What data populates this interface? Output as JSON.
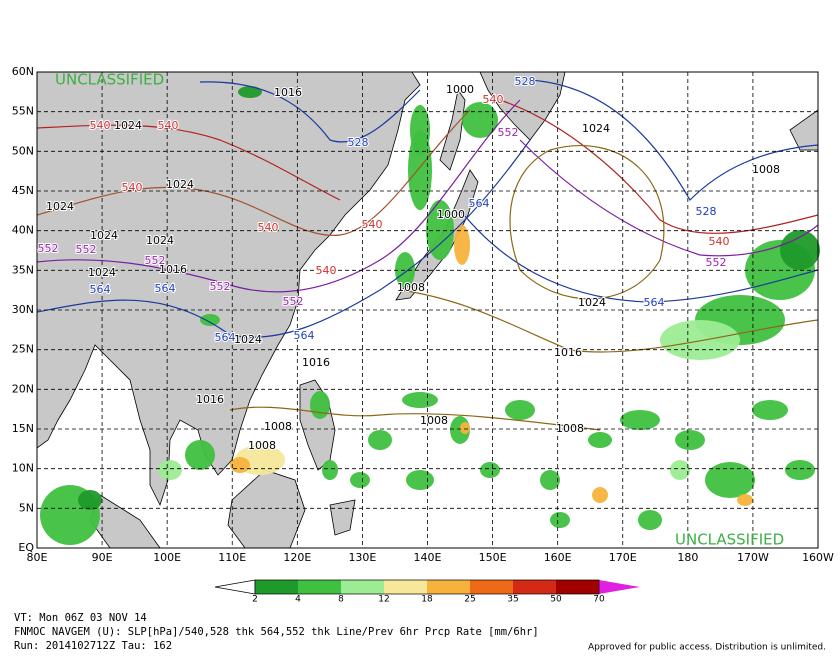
{
  "map": {
    "watermarks": [
      "UNCLASSIFIED",
      "UNCLASSIFIED"
    ],
    "lat_labels": [
      "EQ",
      "5N",
      "10N",
      "15N",
      "20N",
      "25N",
      "30N",
      "35N",
      "40N",
      "45N",
      "50N",
      "55N",
      "60N"
    ],
    "lon_labels": [
      "80E",
      "90E",
      "100E",
      "110E",
      "120E",
      "130E",
      "140E",
      "150E",
      "160E",
      "170E",
      "180",
      "170W",
      "160W"
    ],
    "contour_labels": [
      "1016",
      "1024",
      "540",
      "540",
      "1024",
      "540",
      "1024",
      "540",
      "540",
      "1024",
      "552",
      "552",
      "1024",
      "1016",
      "552",
      "1024",
      "564",
      "564",
      "552",
      "552",
      "540",
      "1008",
      "1016",
      "1024",
      "564",
      "564",
      "528",
      "1000",
      "540",
      "552",
      "1000",
      "564",
      "1024",
      "1008",
      "528",
      "540",
      "552",
      "564",
      "1024",
      "1016",
      "1008",
      "1008",
      "1008",
      "1008",
      "528",
      "1016"
    ],
    "colorbar": {
      "labels": [
        2,
        4,
        8,
        12,
        18,
        25,
        35,
        50,
        70
      ]
    },
    "footer": {
      "valid_time": "VT: Mon 06Z 03 NOV 14",
      "description": "FNMOC NAVGEM (U): SLP[hPa]/540,528 thk 564,552 thk Line/Prev 6hr Prcp Rate [mm/6hr]",
      "run": "Run: 2014102712Z Tau: 162",
      "notice": "Approved for public access. Distribution is unlimited."
    }
  }
}
